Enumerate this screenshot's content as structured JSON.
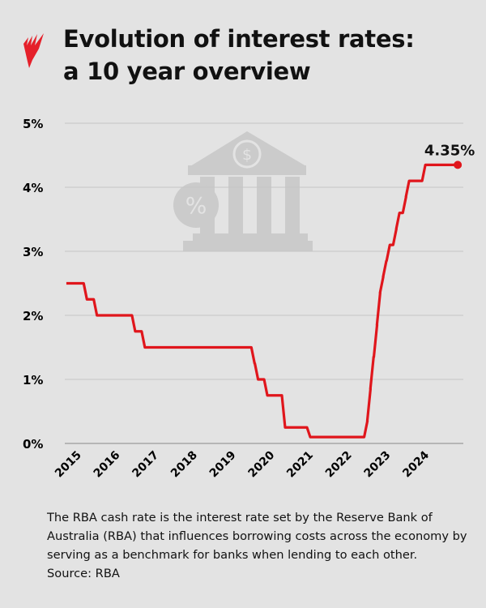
{
  "header": {
    "title_line1": "Evolution of interest rates:",
    "title_line2": "a 10 year overview",
    "logo_icon": "sbs-logo-icon"
  },
  "chart_data": {
    "type": "line",
    "title": "Evolution of interest rates: a 10 year overview",
    "xlabel": "",
    "ylabel": "",
    "ylim": [
      0,
      5
    ],
    "xlim": [
      2014.6,
      2024.75
    ],
    "yticks": [
      0,
      1,
      2,
      3,
      4,
      5
    ],
    "ytick_labels": [
      "0%",
      "1%",
      "2%",
      "3%",
      "4%",
      "5%"
    ],
    "xtick_labels": [
      "2015",
      "2016",
      "2017",
      "2018",
      "2019",
      "2020",
      "2021",
      "2022",
      "2023",
      "2024"
    ],
    "grid": true,
    "series": [
      {
        "name": "RBA cash rate",
        "color": "#e0161c",
        "points": [
          [
            2014.6,
            2.5
          ],
          [
            2015.09,
            2.25
          ],
          [
            2015.35,
            2.0
          ],
          [
            2016.34,
            1.75
          ],
          [
            2016.59,
            1.5
          ],
          [
            2019.43,
            1.25
          ],
          [
            2019.52,
            1.0
          ],
          [
            2019.76,
            0.75
          ],
          [
            2020.22,
            0.25
          ],
          [
            2020.87,
            0.1
          ],
          [
            2022.35,
            0.35
          ],
          [
            2022.43,
            0.85
          ],
          [
            2022.51,
            1.35
          ],
          [
            2022.6,
            1.85
          ],
          [
            2022.68,
            2.35
          ],
          [
            2022.76,
            2.6
          ],
          [
            2022.84,
            2.85
          ],
          [
            2022.93,
            3.1
          ],
          [
            2023.1,
            3.35
          ],
          [
            2023.18,
            3.6
          ],
          [
            2023.35,
            3.85
          ],
          [
            2023.43,
            4.1
          ],
          [
            2023.85,
            4.35
          ],
          [
            2024.73,
            4.35
          ]
        ]
      }
    ],
    "annotations": [
      {
        "text": "4.35%",
        "x": 2024.73,
        "y": 4.35
      }
    ],
    "background_icon": "bank-icon"
  },
  "caption": {
    "text": "The RBA cash rate is the interest rate set by the Reserve Bank of Australia (RBA) that influences borrowing costs across the economy by serving as a benchmark for banks when lending to each other.",
    "source": "Source: RBA"
  }
}
